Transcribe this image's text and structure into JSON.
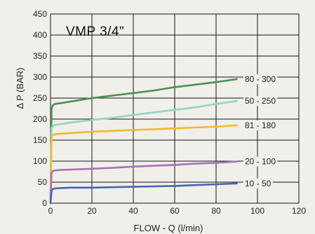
{
  "chart_data": {
    "type": "line",
    "title": "VMP 3/4\"",
    "xlabel": "FLOW - Q (l/min)",
    "ylabel": "Δ P (BAR)",
    "xlim": [
      0,
      120
    ],
    "ylim": [
      0,
      450
    ],
    "xticks": [
      0,
      20,
      40,
      60,
      80,
      100,
      120
    ],
    "yticks": [
      0,
      50,
      100,
      150,
      200,
      250,
      300,
      350,
      400,
      450
    ],
    "grid": true,
    "series": [
      {
        "name": "80 - 300",
        "color": "#4a9254",
        "x": [
          0,
          0.5,
          1,
          2,
          5,
          10,
          20,
          30,
          40,
          50,
          60,
          70,
          80,
          90
        ],
        "y": [
          0,
          225,
          232,
          236,
          238,
          242,
          250,
          256,
          262,
          268,
          276,
          282,
          288,
          295
        ]
      },
      {
        "name": "50 - 250",
        "color": "#8fd6c4",
        "x": [
          0,
          0.5,
          1,
          2,
          5,
          10,
          20,
          30,
          40,
          50,
          60,
          70,
          80,
          90
        ],
        "y": [
          0,
          178,
          183,
          186,
          188,
          192,
          198,
          203,
          210,
          216,
          222,
          228,
          236,
          243
        ]
      },
      {
        "name": "81 - 180",
        "color": "#f2b833",
        "x": [
          0,
          0.5,
          1,
          2,
          5,
          10,
          20,
          30,
          40,
          50,
          60,
          70,
          80,
          90
        ],
        "y": [
          0,
          158,
          162,
          164,
          165,
          167,
          170,
          172,
          174,
          176,
          178,
          180,
          182,
          185
        ]
      },
      {
        "name": "20 - 100",
        "color": "#a970b9",
        "x": [
          0,
          0.5,
          1,
          2,
          5,
          10,
          20,
          30,
          40,
          50,
          60,
          70,
          80,
          90
        ],
        "y": [
          0,
          72,
          76,
          78,
          79,
          80,
          82,
          84,
          87,
          89,
          91,
          94,
          96,
          99
        ]
      },
      {
        "name": "10 - 50",
        "color": "#4466b2",
        "x": [
          0,
          0.5,
          1,
          2,
          5,
          10,
          20,
          30,
          40,
          50,
          60,
          70,
          80,
          90
        ],
        "y": [
          0,
          30,
          33,
          35,
          36,
          37,
          37,
          38,
          39,
          40,
          41,
          43,
          45,
          47
        ]
      }
    ]
  }
}
